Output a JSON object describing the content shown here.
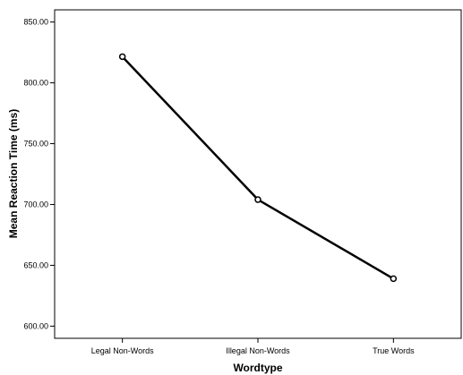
{
  "chart_data": {
    "type": "line",
    "title": "",
    "xlabel": "Wordtype",
    "ylabel": "Mean Reaction Time (ms)",
    "categories": [
      "Legal Non-Words",
      "Illegal Non-Words",
      "True Words"
    ],
    "series": [
      {
        "values": [
          821.5,
          704.0,
          639.0
        ]
      }
    ],
    "ylim": [
      590,
      860
    ],
    "yticks": [
      "600.00",
      "650.00",
      "700.00",
      "750.00",
      "800.00",
      "850.00"
    ],
    "grid": false,
    "legend": "none",
    "colors": {
      "line": "#000000",
      "axis": "#000000",
      "background": "#ffffff"
    }
  }
}
